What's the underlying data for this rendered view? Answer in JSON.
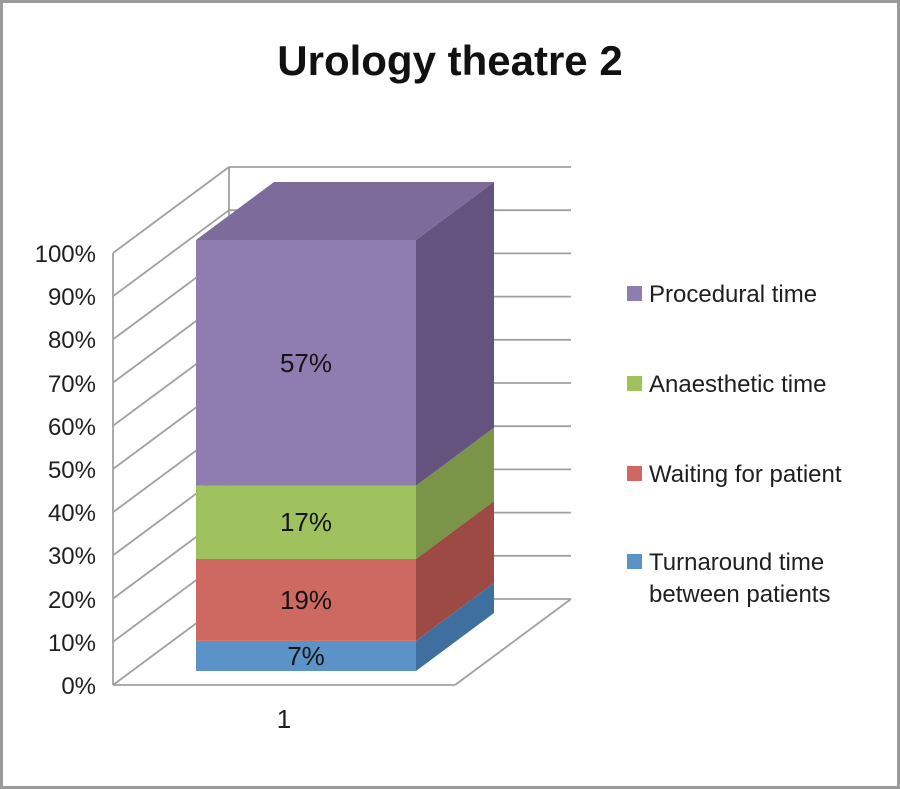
{
  "window": {
    "background_color": "#ffffff",
    "border_color": "#9b9b9b"
  },
  "chart_data": {
    "type": "bar",
    "subtype": "3d-100-percent-stacked-column",
    "title": "Urology theatre 2",
    "categories": [
      "1"
    ],
    "series": [
      {
        "name": "Turnaround time between patients",
        "values": [
          7
        ],
        "data_label": "7%",
        "color": "#5b93c9",
        "side_color": "#3f6f9e"
      },
      {
        "name": "Waiting for patient",
        "values": [
          19
        ],
        "data_label": "19%",
        "color": "#cd6961",
        "side_color": "#9e4a44"
      },
      {
        "name": "Anaesthetic time",
        "values": [
          17
        ],
        "data_label": "17%",
        "color": "#9fc25e",
        "side_color": "#7a9448"
      },
      {
        "name": "Procedural time",
        "values": [
          57
        ],
        "data_label": "57%",
        "color": "#8f7cb0",
        "side_color": "#64527f",
        "top_color": "#7d6b9b"
      }
    ],
    "xlabel": "",
    "ylabel": "",
    "ylim": [
      0,
      100
    ],
    "y_ticks": [
      "0%",
      "10%",
      "20%",
      "30%",
      "40%",
      "50%",
      "60%",
      "70%",
      "80%",
      "90%",
      "100%"
    ],
    "grid": true,
    "gridline_color": "#a0a0a0",
    "text_color": "#1f1f1f",
    "legend_position": "right",
    "legend": [
      {
        "label": "Procedural time",
        "color": "#8f7cb0"
      },
      {
        "label": "Anaesthetic time",
        "color": "#9fc25e"
      },
      {
        "label": "Waiting for patient",
        "color": "#cd6961"
      },
      {
        "label": "Turnaround time between patients",
        "color": "#5b93c9"
      }
    ]
  }
}
